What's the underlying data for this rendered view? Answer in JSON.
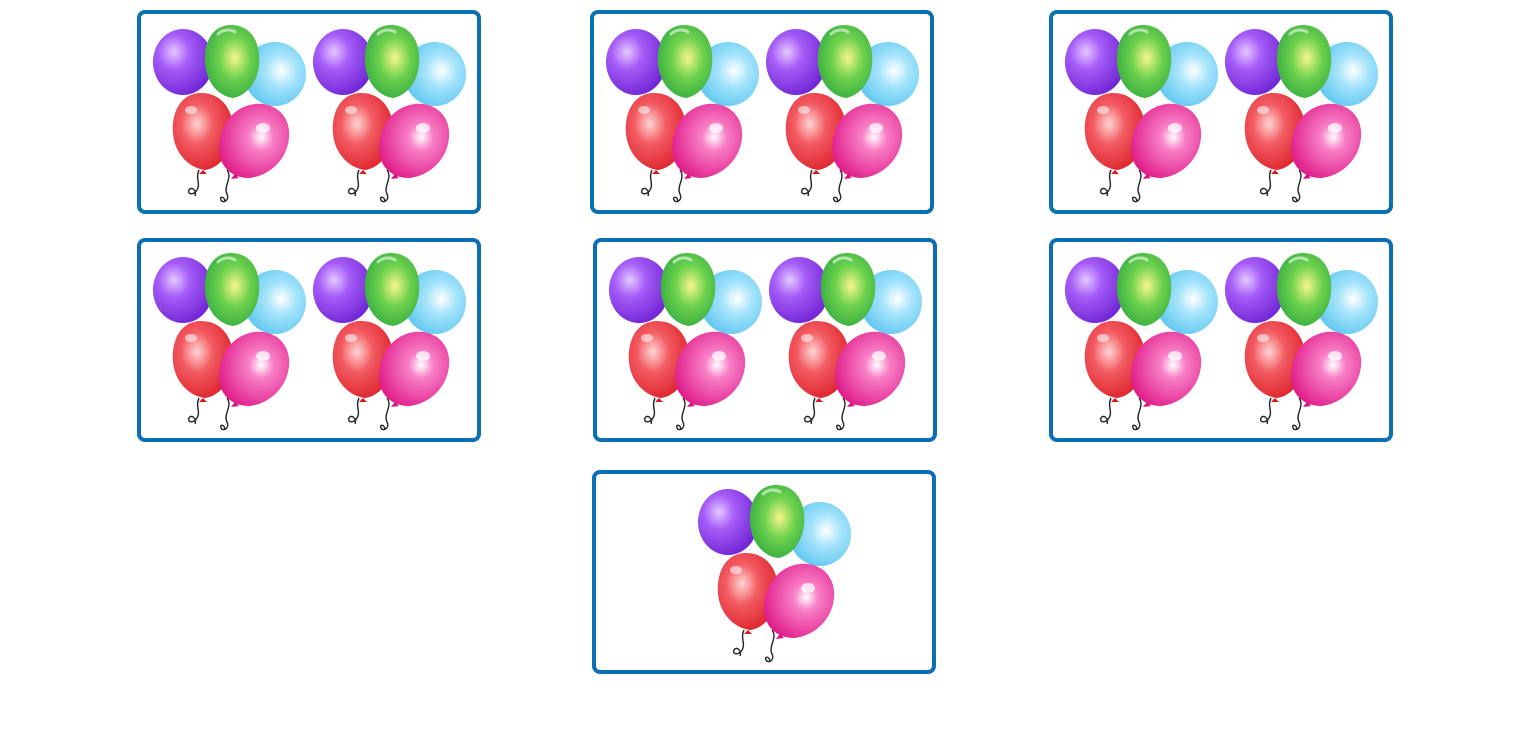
{
  "colors": {
    "card_border": "#0b6fb5",
    "balloon_purple": "#8a3df0",
    "balloon_green": "#4fc24a",
    "balloon_blue": "#7fd4f7",
    "balloon_red": "#ee3b45",
    "balloon_pink": "#ec2d97"
  },
  "cards": [
    {
      "balloon_bunches": 2
    },
    {
      "balloon_bunches": 2
    },
    {
      "balloon_bunches": 2
    },
    {
      "balloon_bunches": 2
    },
    {
      "balloon_bunches": 2
    },
    {
      "balloon_bunches": 2
    },
    {
      "balloon_bunches": 1
    }
  ]
}
